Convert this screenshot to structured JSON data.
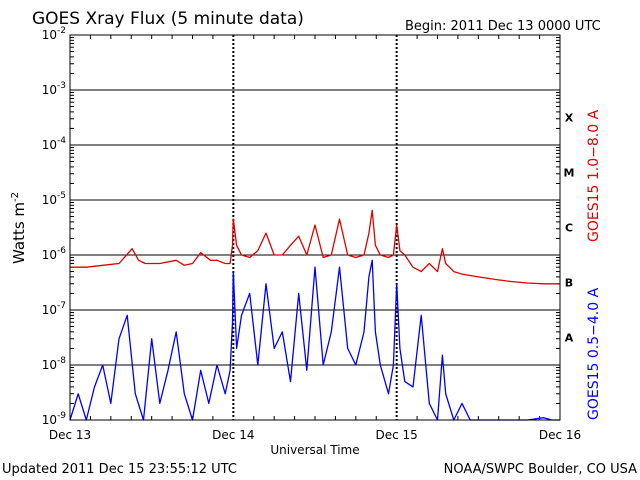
{
  "header": {
    "title": "GOES Xray Flux (5 minute data)",
    "begin": "Begin:  2011 Dec 13 0000 UTC"
  },
  "footer": {
    "updated": "Updated 2011 Dec 15 23:55:12 UTC",
    "credit": "NOAA/SWPC Boulder, CO USA"
  },
  "colors": {
    "long_channel": "#e00000",
    "short_channel": "#0000ff",
    "grid": "#000000",
    "background": "#ffffff"
  },
  "chart_data": {
    "type": "line",
    "title": "GOES Xray Flux (5 minute data)",
    "xlabel": "Universal Time",
    "ylabel": "Watts m",
    "ylabel_superscript": "-2",
    "y_scale": "log",
    "ylim": [
      1e-09,
      0.01
    ],
    "y_ticks": [
      {
        "base": "10",
        "exp": "-9"
      },
      {
        "base": "10",
        "exp": "-8"
      },
      {
        "base": "10",
        "exp": "-7"
      },
      {
        "base": "10",
        "exp": "-6"
      },
      {
        "base": "10",
        "exp": "-5"
      },
      {
        "base": "10",
        "exp": "-4"
      },
      {
        "base": "10",
        "exp": "-3"
      },
      {
        "base": "10",
        "exp": "-2"
      }
    ],
    "x_unit": "days since Dec 13 0000 UTC",
    "xlim": [
      0,
      3
    ],
    "x_ticks": [
      "Dec 13",
      "Dec 14",
      "Dec 15",
      "Dec 16"
    ],
    "flare_classes": [
      {
        "label": "A",
        "value": 1e-08
      },
      {
        "label": "B",
        "value": 1e-07
      },
      {
        "label": "C",
        "value": 1e-06
      },
      {
        "label": "M",
        "value": 1e-05
      },
      {
        "label": "X",
        "value": 0.0001
      }
    ],
    "grid": true,
    "series": [
      {
        "name": "GOES15 1.0−8.0 A",
        "color": "#e00000",
        "x": [
          0.0,
          0.1,
          0.2,
          0.3,
          0.38,
          0.42,
          0.46,
          0.55,
          0.65,
          0.7,
          0.75,
          0.8,
          0.86,
          0.9,
          0.95,
          0.98,
          0.995,
          1.0,
          1.02,
          1.05,
          1.1,
          1.15,
          1.2,
          1.25,
          1.3,
          1.35,
          1.4,
          1.45,
          1.5,
          1.55,
          1.6,
          1.65,
          1.7,
          1.75,
          1.8,
          1.83,
          1.85,
          1.87,
          1.9,
          1.95,
          1.98,
          2.0,
          2.02,
          2.05,
          2.1,
          2.15,
          2.2,
          2.25,
          2.28,
          2.3,
          2.35,
          2.4,
          2.5,
          2.6,
          2.7,
          2.8,
          2.9,
          3.0
        ],
        "y": [
          6e-07,
          6e-07,
          6.5e-07,
          7e-07,
          1.3e-06,
          8e-07,
          7e-07,
          7e-07,
          8e-07,
          6.5e-07,
          7e-07,
          1.1e-06,
          8e-07,
          8e-07,
          7e-07,
          7e-07,
          1.5e-06,
          4.5e-06,
          1.5e-06,
          1e-06,
          9e-07,
          1.2e-06,
          2.5e-06,
          1e-06,
          1e-06,
          1.5e-06,
          2.2e-06,
          1e-06,
          3.5e-06,
          9e-07,
          1e-06,
          4.5e-06,
          1e-06,
          9e-07,
          1e-06,
          2.5e-06,
          6.5e-06,
          1.5e-06,
          1e-06,
          9e-07,
          1e-06,
          3.5e-06,
          1.2e-06,
          1e-06,
          6e-07,
          5e-07,
          7e-07,
          5e-07,
          1.3e-06,
          7e-07,
          5e-07,
          4.5e-07,
          4e-07,
          3.6e-07,
          3.3e-07,
          3.1e-07,
          3e-07,
          3e-07
        ]
      },
      {
        "name": "GOES15 0.5−4.0 A",
        "color": "#0000ff",
        "x": [
          0.0,
          0.05,
          0.1,
          0.15,
          0.2,
          0.25,
          0.3,
          0.35,
          0.4,
          0.45,
          0.5,
          0.55,
          0.6,
          0.65,
          0.7,
          0.75,
          0.8,
          0.85,
          0.9,
          0.95,
          0.98,
          0.995,
          1.0,
          1.02,
          1.05,
          1.1,
          1.15,
          1.2,
          1.25,
          1.3,
          1.35,
          1.4,
          1.45,
          1.5,
          1.55,
          1.6,
          1.65,
          1.7,
          1.75,
          1.8,
          1.83,
          1.85,
          1.87,
          1.9,
          1.95,
          1.98,
          2.0,
          2.02,
          2.05,
          2.1,
          2.15,
          2.2,
          2.25,
          2.28,
          2.3,
          2.35,
          2.4,
          2.45,
          2.5,
          2.6,
          2.7,
          2.8,
          2.9,
          2.95,
          3.0
        ],
        "y": [
          1e-09,
          3e-09,
          1e-09,
          4e-09,
          1e-08,
          2e-09,
          3e-08,
          8e-08,
          3e-09,
          1e-09,
          3e-08,
          2e-09,
          8e-09,
          4e-08,
          3e-09,
          1e-09,
          8e-09,
          2e-09,
          1e-08,
          3e-09,
          8e-09,
          6e-08,
          5e-07,
          2e-08,
          8e-08,
          2e-07,
          1e-08,
          3e-07,
          2e-08,
          4e-08,
          5e-09,
          2e-07,
          8e-09,
          6e-07,
          1e-08,
          4e-08,
          6e-07,
          2e-08,
          1e-08,
          4e-08,
          4e-07,
          8e-07,
          4e-08,
          1e-08,
          3e-09,
          1e-08,
          3e-07,
          2e-08,
          5e-09,
          4e-09,
          8e-08,
          2e-09,
          1e-09,
          1.5e-08,
          3e-09,
          1e-09,
          2e-09,
          1e-09,
          1e-09,
          1e-09,
          1e-09,
          1e-09,
          1.1e-09,
          1e-09,
          1e-09
        ]
      }
    ]
  }
}
